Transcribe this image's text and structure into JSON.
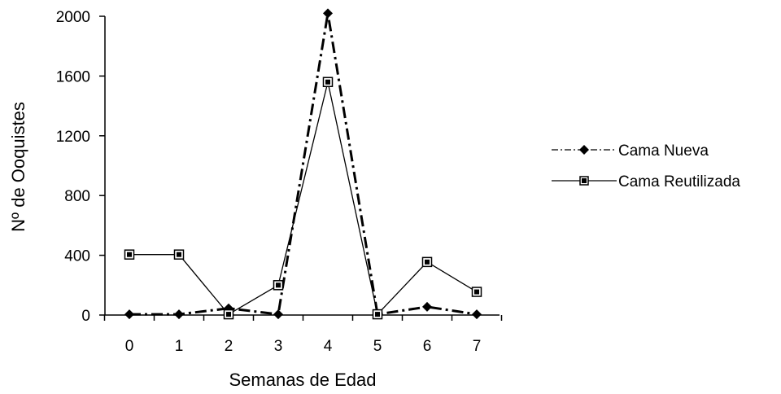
{
  "chart_data": {
    "type": "line",
    "title": "",
    "xlabel": "Semanas de Edad",
    "ylabel": "Nº de Ooquistes",
    "categories": [
      "0",
      "1",
      "2",
      "3",
      "4",
      "5",
      "6",
      "7"
    ],
    "yticks": [
      "0",
      "400",
      "800",
      "1200",
      "1600",
      "2000"
    ],
    "ylim": [
      0,
      2000
    ],
    "grid": false,
    "legend_position": "right",
    "series": [
      {
        "name": "Cama Nueva",
        "style": "dash-dot",
        "marker": "diamond",
        "values": [
          5,
          5,
          45,
          5,
          2020,
          5,
          55,
          5
        ]
      },
      {
        "name": "Cama Reutilizada",
        "style": "solid",
        "marker": "square",
        "values": [
          405,
          405,
          5,
          200,
          1560,
          5,
          355,
          155
        ]
      }
    ]
  }
}
